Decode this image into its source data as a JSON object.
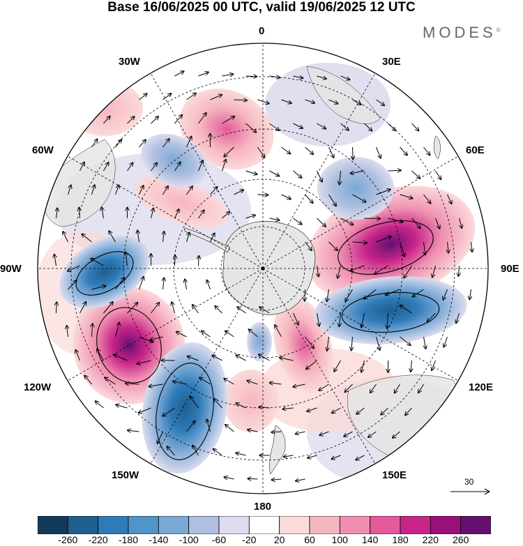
{
  "title": "Base 16/06/2025 00 UTC, valid 19/06/2025 12 UTC",
  "brand": "MODES",
  "brand_mark": "©",
  "meridian_labels": {
    "m0": "0",
    "m30e": "30E",
    "m60e": "60E",
    "m90e": "90E",
    "m120e": "120E",
    "m150e": "150E",
    "m180": "180",
    "m150w": "150W",
    "m120w": "120W",
    "m90w": "90W",
    "m60w": "60W",
    "m30w": "30W"
  },
  "reference_vector": "30",
  "colorbar": {
    "ticks": [
      "-260",
      "-220",
      "-180",
      "-140",
      "-100",
      "-60",
      "-20",
      "20",
      "60",
      "100",
      "140",
      "180",
      "220",
      "260"
    ],
    "colors": [
      "#143a5a",
      "#1f5f8f",
      "#2f7bb8",
      "#4e95c8",
      "#7ba9d6",
      "#aebfe0",
      "#dcdcee",
      "#ffffff",
      "#fbdada",
      "#f6b6bf",
      "#ef8fb0",
      "#e35b9c",
      "#c8258a",
      "#9a107a",
      "#651070"
    ]
  },
  "colors": {
    "land": "#e6e6e6",
    "outline": "#000000",
    "grid": "#000000"
  }
}
